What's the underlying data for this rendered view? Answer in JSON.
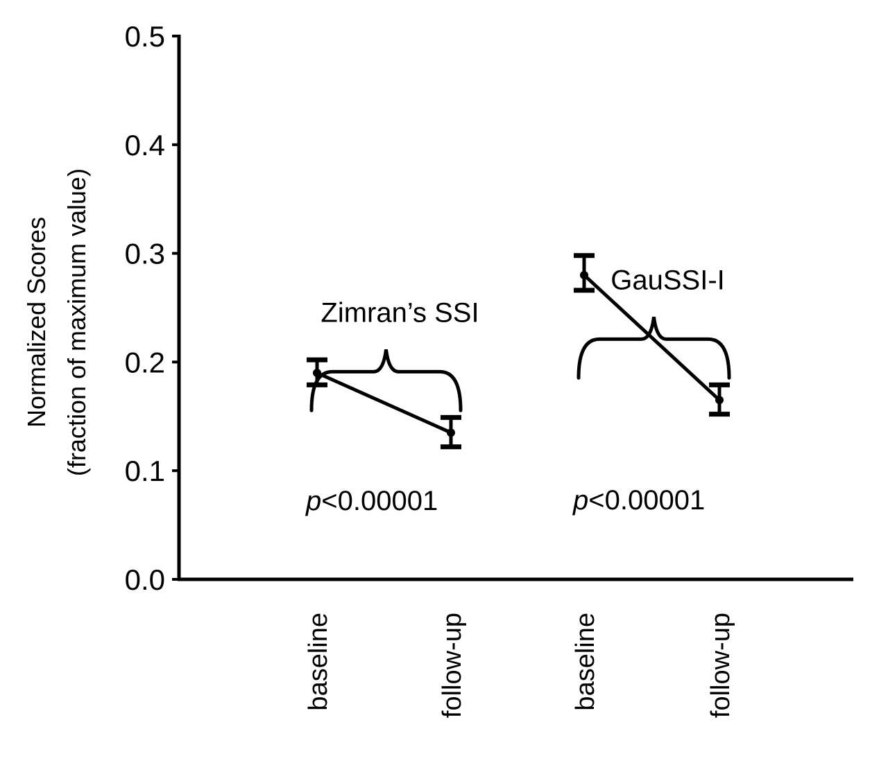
{
  "chart_data": {
    "type": "line",
    "title": "",
    "xlabel": "",
    "ylabel_line1": "Normalized Scores",
    "ylabel_line2": "(fraction of maximum value)",
    "ylim": [
      0.0,
      0.5
    ],
    "yticks": [
      "0.0",
      "0.1",
      "0.2",
      "0.3",
      "0.4",
      "0.5"
    ],
    "categories": [
      "baseline",
      "follow-up",
      "baseline",
      "follow-up"
    ],
    "groups": [
      {
        "name": "Zimran's SSI",
        "label": "Zimran’s SSI",
        "categories": [
          "baseline",
          "follow-up"
        ],
        "values": [
          0.19,
          0.135
        ],
        "error_low": [
          0.179,
          0.122
        ],
        "error_high": [
          0.202,
          0.149
        ],
        "p_prefix": "p",
        "p_value": "<0.00001"
      },
      {
        "name": "GauSSI-I",
        "label": "GauSSI-I",
        "categories": [
          "baseline",
          "follow-up"
        ],
        "values": [
          0.28,
          0.165
        ],
        "error_low": [
          0.266,
          0.152
        ],
        "error_high": [
          0.298,
          0.179
        ],
        "p_prefix": "p",
        "p_value": "<0.00001"
      }
    ],
    "grid": false,
    "legend": "none",
    "colors": {
      "ink": "#000000",
      "background": "#ffffff"
    }
  }
}
